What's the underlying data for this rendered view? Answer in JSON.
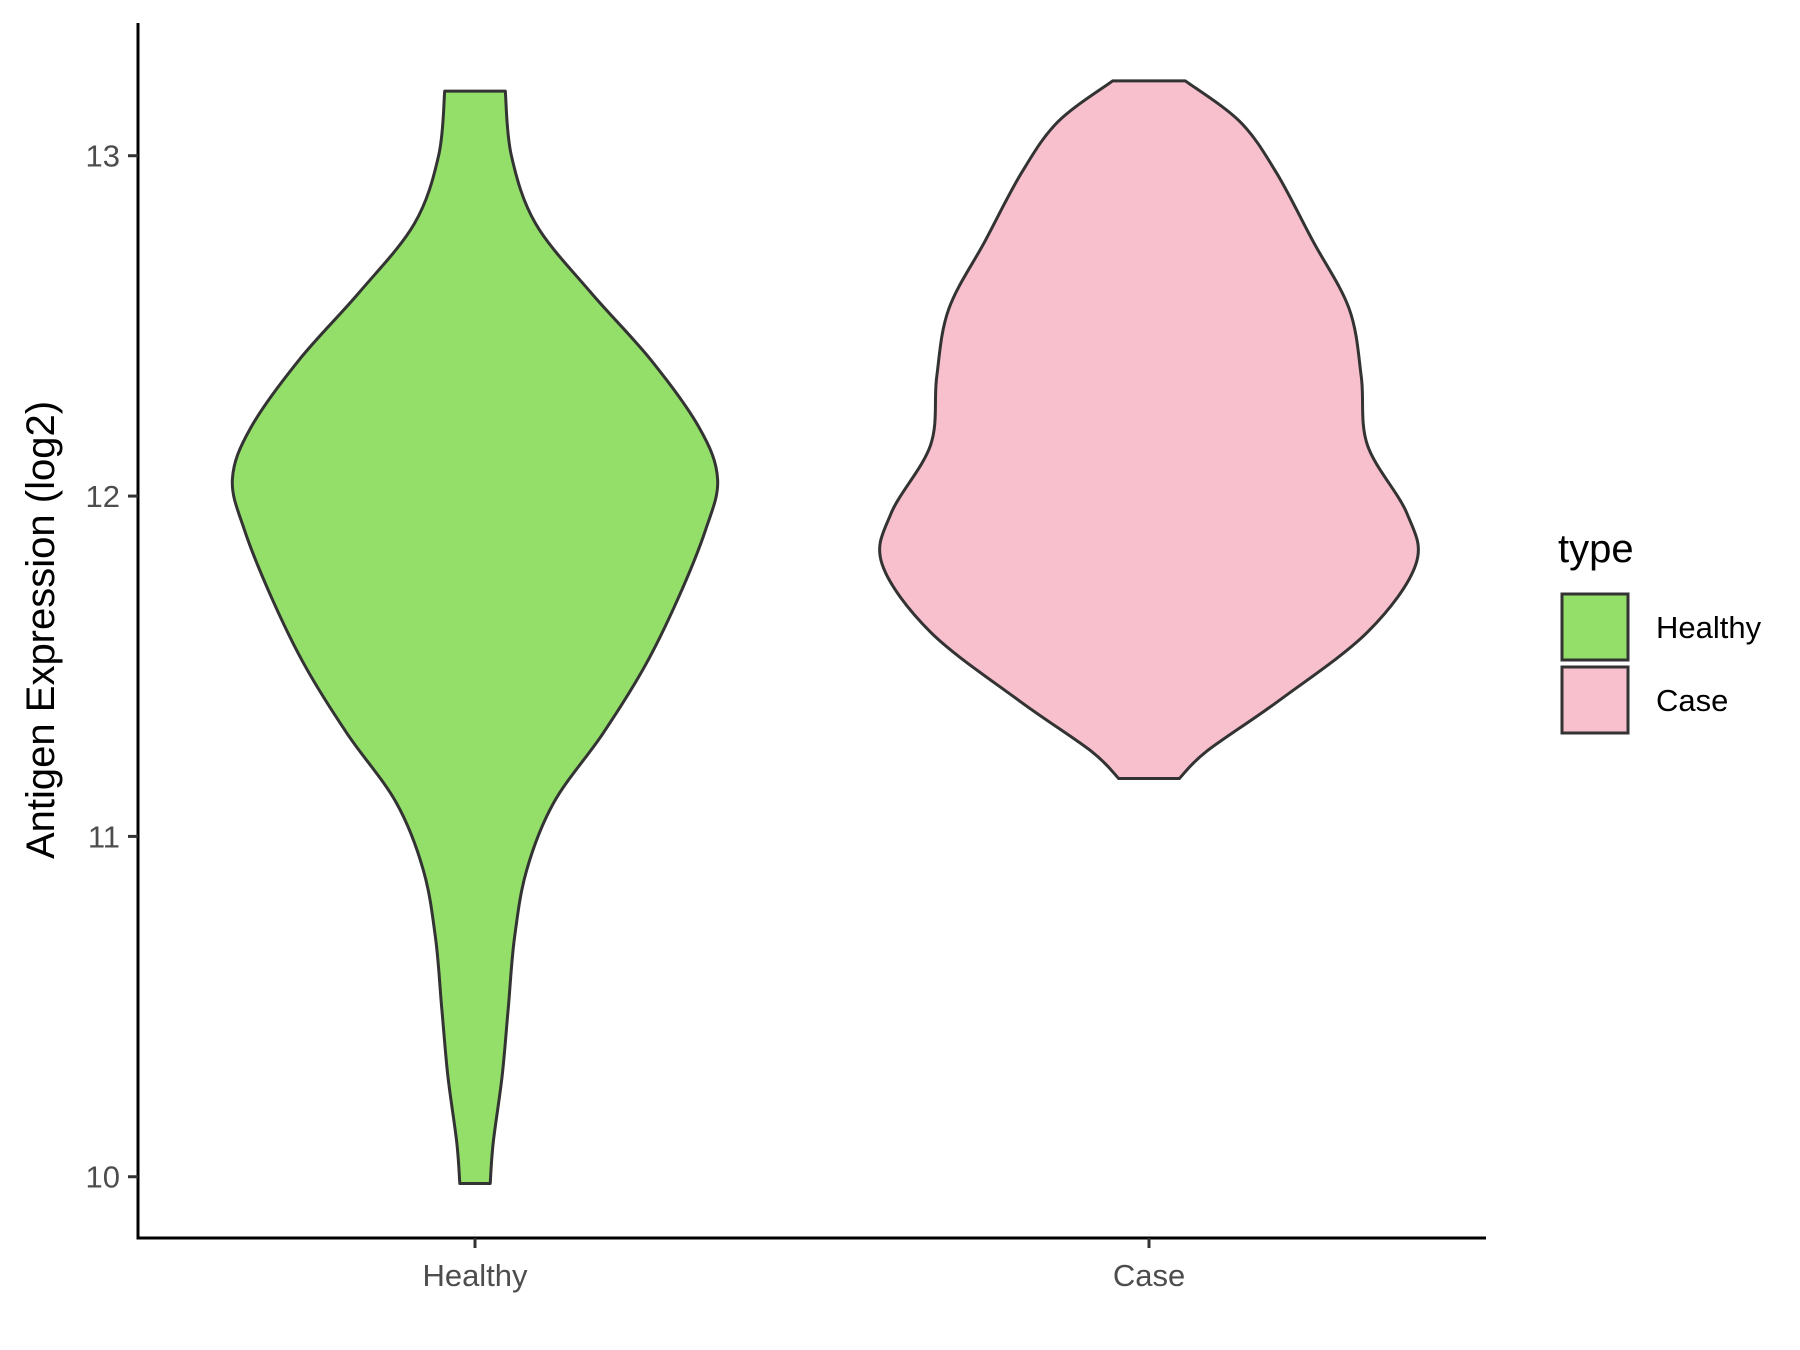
{
  "chart_data": {
    "type": "violin",
    "title": "",
    "xlabel": "",
    "ylabel": "Antigen Expression (log2)",
    "y_ticks": [
      10,
      11,
      12,
      13
    ],
    "ylim": [
      9.82,
      13.39
    ],
    "categories": [
      "Healthy",
      "Case"
    ],
    "legend": {
      "title": "type",
      "position": "right",
      "entries": [
        {
          "label": "Healthy",
          "color": "#94de6a"
        },
        {
          "label": "Case",
          "color": "#f7c0cc"
        }
      ]
    },
    "series": [
      {
        "category": "Healthy",
        "color": "#94de6a",
        "profile": [
          [
            9.98,
            0.05
          ],
          [
            10.1,
            0.06
          ],
          [
            10.3,
            0.09
          ],
          [
            10.5,
            0.11
          ],
          [
            10.7,
            0.13
          ],
          [
            10.9,
            0.17
          ],
          [
            11.1,
            0.26
          ],
          [
            11.3,
            0.42
          ],
          [
            11.5,
            0.56
          ],
          [
            11.7,
            0.67
          ],
          [
            11.9,
            0.76
          ],
          [
            12.05,
            0.8
          ],
          [
            12.2,
            0.74
          ],
          [
            12.4,
            0.58
          ],
          [
            12.6,
            0.38
          ],
          [
            12.8,
            0.2
          ],
          [
            13.0,
            0.12
          ],
          [
            13.19,
            0.1
          ]
        ]
      },
      {
        "category": "Case",
        "color": "#f7c0cc",
        "profile": [
          [
            11.17,
            0.1
          ],
          [
            11.25,
            0.19
          ],
          [
            11.4,
            0.43
          ],
          [
            11.6,
            0.72
          ],
          [
            11.8,
            0.88
          ],
          [
            11.95,
            0.85
          ],
          [
            12.15,
            0.72
          ],
          [
            12.35,
            0.7
          ],
          [
            12.55,
            0.66
          ],
          [
            12.75,
            0.54
          ],
          [
            12.95,
            0.42
          ],
          [
            13.1,
            0.3
          ],
          [
            13.22,
            0.12
          ]
        ]
      }
    ]
  }
}
